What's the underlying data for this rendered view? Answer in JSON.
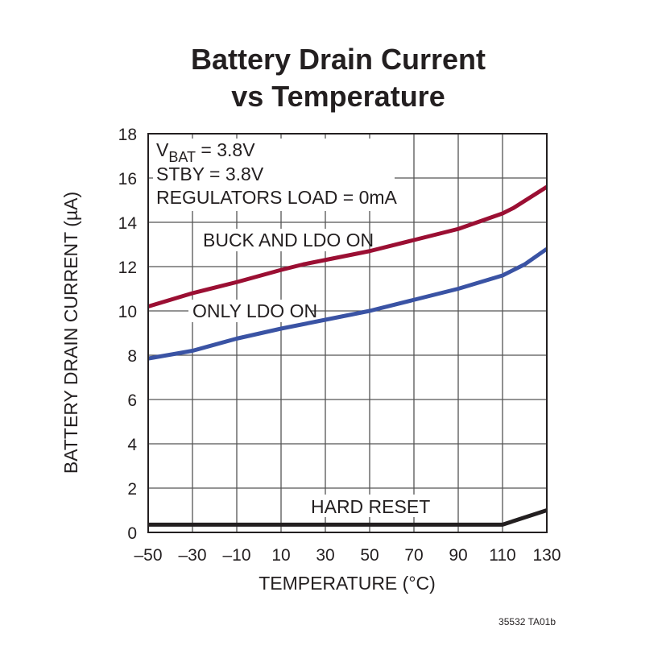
{
  "chart_data": {
    "type": "line",
    "title": [
      "Battery Drain Current",
      "vs Temperature"
    ],
    "xlabel": "TEMPERATURE (°C)",
    "ylabel": "BATTERY DRAIN CURRENT (µA)",
    "xlim": [
      -50,
      130
    ],
    "ylim": [
      0,
      18
    ],
    "xticks": [
      "–50",
      "–30",
      "–10",
      "10",
      "30",
      "50",
      "70",
      "90",
      "110",
      "130"
    ],
    "yticks": [
      "0",
      "2",
      "4",
      "6",
      "8",
      "10",
      "12",
      "14",
      "16",
      "18"
    ],
    "grid": true,
    "conditions": [
      "STBY = 3.8V",
      "REGULATORS LOAD = 0mA"
    ],
    "condition_vbat": {
      "v": "V",
      "sub": "BAT",
      "rest": " = 3.8V"
    },
    "series": [
      {
        "name": "BUCK AND LDO ON",
        "color": "#9b0f33",
        "x": [
          -50,
          -30,
          -10,
          10,
          20,
          30,
          50,
          70,
          90,
          110,
          115,
          130
        ],
        "y": [
          10.2,
          10.8,
          11.3,
          11.85,
          12.1,
          12.3,
          12.7,
          13.2,
          13.7,
          14.4,
          14.65,
          15.6
        ]
      },
      {
        "name": "ONLY LDO ON",
        "color": "#3a53a4",
        "x": [
          -50,
          -30,
          -10,
          10,
          30,
          50,
          70,
          90,
          110,
          120,
          130
        ],
        "y": [
          7.85,
          8.2,
          8.75,
          9.2,
          9.6,
          10.0,
          10.5,
          11.0,
          11.6,
          12.1,
          12.8
        ]
      },
      {
        "name": "HARD RESET",
        "color": "#231f20",
        "x": [
          -50,
          110,
          130
        ],
        "y": [
          0.35,
          0.35,
          1.0
        ]
      }
    ]
  },
  "footnote": "35532 TA01b"
}
